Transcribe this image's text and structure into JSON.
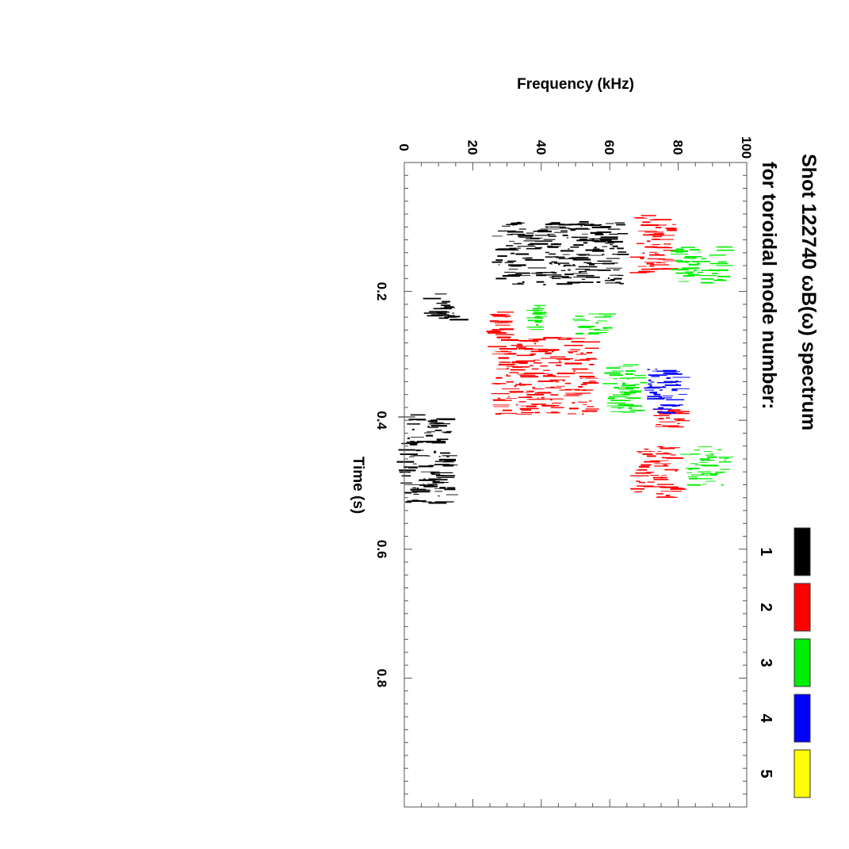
{
  "chart_data": {
    "type": "scatter",
    "title": "Shot 122740 ωB(ω) spectrum",
    "subtitle": "for toroidal mode number:",
    "xlabel": "Time (s)",
    "ylabel": "Frequency (kHz)",
    "xlim": [
      0,
      1.0
    ],
    "ylim": [
      0,
      100
    ],
    "x_ticks": [
      0.2,
      0.4,
      0.6,
      0.8
    ],
    "x_tick_labels": [
      "0.2",
      "0.4",
      "0.6",
      "0.8"
    ],
    "y_ticks": [
      0,
      20,
      40,
      60,
      80,
      100
    ],
    "y_tick_labels": [
      "0",
      "20",
      "40",
      "60",
      "80",
      "100"
    ],
    "orientation": "rotated 90° clockwise",
    "legend": {
      "placement": "right",
      "entries": [
        {
          "label": "1",
          "color": "#000000"
        },
        {
          "label": "2",
          "color": "#ff0000"
        },
        {
          "label": "3",
          "color": "#00ee00"
        },
        {
          "label": "4",
          "color": "#0000ff"
        },
        {
          "label": "5",
          "color": "#ffff00"
        }
      ]
    },
    "series": [
      {
        "mode": 1,
        "color": "#000000",
        "regions": [
          {
            "t": [
              0.09,
              0.19
            ],
            "f": [
              27,
              64
            ]
          },
          {
            "t": [
              0.2,
              0.25
            ],
            "f": [
              8,
              16
            ]
          },
          {
            "t": [
              0.39,
              0.53
            ],
            "f": [
              0,
              14
            ]
          }
        ]
      },
      {
        "mode": 2,
        "color": "#ff0000",
        "regions": [
          {
            "t": [
              0.08,
              0.17
            ],
            "f": [
              68,
              79
            ]
          },
          {
            "t": [
              0.23,
              0.27
            ],
            "f": [
              26,
              30
            ]
          },
          {
            "t": [
              0.27,
              0.39
            ],
            "f": [
              27,
              55
            ]
          },
          {
            "t": [
              0.38,
              0.41
            ],
            "f": [
              74,
              82
            ]
          },
          {
            "t": [
              0.44,
              0.52
            ],
            "f": [
              68,
              80
            ]
          }
        ]
      },
      {
        "mode": 3,
        "color": "#00ee00",
        "regions": [
          {
            "t": [
              0.13,
              0.19
            ],
            "f": [
              80,
              94
            ]
          },
          {
            "t": [
              0.22,
              0.26
            ],
            "f": [
              38,
              40
            ]
          },
          {
            "t": [
              0.23,
              0.27
            ],
            "f": [
              51,
              60
            ]
          },
          {
            "t": [
              0.31,
              0.39
            ],
            "f": [
              60,
              70
            ]
          },
          {
            "t": [
              0.44,
              0.5
            ],
            "f": [
              83,
              95
            ]
          }
        ]
      },
      {
        "mode": 4,
        "color": "#0000ff",
        "regions": [
          {
            "t": [
              0.32,
              0.39
            ],
            "f": [
              71,
              83
            ]
          }
        ]
      },
      {
        "mode": 5,
        "color": "#ffff00",
        "regions": []
      }
    ]
  }
}
